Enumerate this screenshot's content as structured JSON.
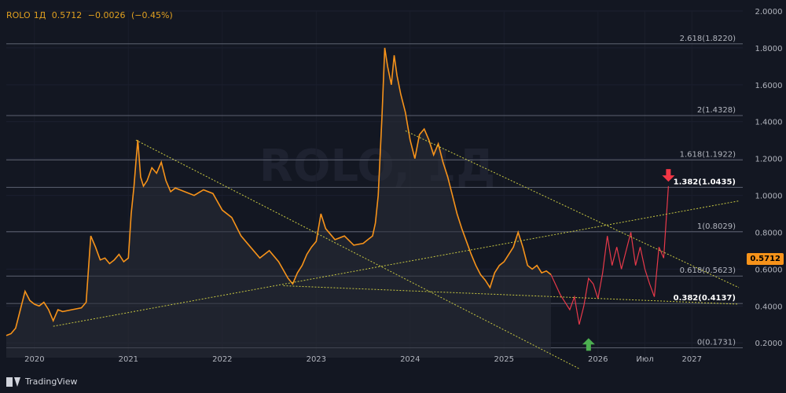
{
  "header": {
    "symbol": "ROLO",
    "timeframe": "1Д",
    "price": "0.5712",
    "change": "−0.0026",
    "change_pct": "(−0.45%)"
  },
  "brand": "TradingView",
  "price_tag": "0.5712",
  "watermark": "ROLO, 1Д",
  "colors": {
    "background": "#131722",
    "price_line": "#f7931a",
    "forecast": "#e8394a",
    "trendline": "#c8c842",
    "fib_line": "#5d6270",
    "up_arrow": "#4caf50",
    "down_arrow": "#f23645"
  },
  "chart_data": {
    "type": "line",
    "y_axis": {
      "ylim": [
        0.12,
        2.0
      ],
      "ticks": [
        "2.0000",
        "1.8000",
        "1.6000",
        "1.4000",
        "1.2000",
        "1.0000",
        "0.8000",
        "0.6000",
        "0.4000",
        "0.2000"
      ]
    },
    "x_axis": {
      "labels": [
        "2020",
        "2021",
        "2022",
        "2023",
        "2024",
        "2025",
        "2026",
        "Июл",
        "2027"
      ],
      "positions": [
        2020.0,
        2021.0,
        2022.0,
        2023.0,
        2024.0,
        2025.0,
        2026.0,
        2026.5,
        2027.0
      ]
    },
    "fib_levels": [
      {
        "label": "2.618(1.8220)",
        "value": 1.822,
        "bold": false
      },
      {
        "label": "2(1.4328)",
        "value": 1.4328,
        "bold": false
      },
      {
        "label": "1.618(1.1922)",
        "value": 1.1922,
        "bold": false
      },
      {
        "label": "1.382(1.0435)",
        "value": 1.0435,
        "bold": true
      },
      {
        "label": "1(0.8029)",
        "value": 0.8029,
        "bold": false
      },
      {
        "label": "0.618(0.5623)",
        "value": 0.5623,
        "bold": false
      },
      {
        "label": "0.382(0.4137)",
        "value": 0.4137,
        "bold": true
      },
      {
        "label": "0(0.1731)",
        "value": 0.1731,
        "bold": false
      }
    ],
    "series": [
      {
        "x": [
          2019.7,
          2019.75,
          2019.8,
          2019.85,
          2019.9,
          2019.95,
          2020.0,
          2020.05,
          2020.1,
          2020.15,
          2020.2,
          2020.25,
          2020.3,
          2020.4,
          2020.5,
          2020.55,
          2020.6,
          2020.65,
          2020.7,
          2020.75,
          2020.8,
          2020.85,
          2020.9,
          2020.95,
          2021.0,
          2021.03,
          2021.06,
          2021.08,
          2021.1,
          2021.13,
          2021.16,
          2021.2,
          2021.25,
          2021.3,
          2021.35,
          2021.4,
          2021.45,
          2021.5,
          2021.6,
          2021.7,
          2021.8,
          2021.9,
          2022.0,
          2022.1,
          2022.2,
          2022.3,
          2022.4,
          2022.5,
          2022.6,
          2022.7,
          2022.75,
          2022.8,
          2022.85,
          2022.9,
          2022.95,
          2023.0,
          2023.05,
          2023.1,
          2023.2,
          2023.3,
          2023.4,
          2023.5,
          2023.55,
          2023.6,
          2023.63,
          2023.66,
          2023.7,
          2023.73,
          2023.76,
          2023.8,
          2023.83,
          2023.86,
          2023.9,
          2023.95,
          2024.0,
          2024.05,
          2024.1,
          2024.15,
          2024.2,
          2024.25,
          2024.3,
          2024.35,
          2024.4,
          2024.45,
          2024.5,
          2024.55,
          2024.6,
          2024.65,
          2024.7,
          2024.75,
          2024.8,
          2024.85,
          2024.9,
          2024.95,
          2025.0,
          2025.05,
          2025.1,
          2025.15,
          2025.2,
          2025.25,
          2025.3,
          2025.35,
          2025.4,
          2025.45,
          2025.5
        ],
        "y": [
          0.24,
          0.25,
          0.28,
          0.38,
          0.48,
          0.43,
          0.41,
          0.4,
          0.42,
          0.38,
          0.32,
          0.38,
          0.37,
          0.38,
          0.39,
          0.42,
          0.78,
          0.72,
          0.65,
          0.66,
          0.63,
          0.65,
          0.68,
          0.64,
          0.66,
          0.9,
          1.05,
          1.18,
          1.3,
          1.1,
          1.05,
          1.08,
          1.15,
          1.12,
          1.18,
          1.08,
          1.02,
          1.04,
          1.02,
          1.0,
          1.03,
          1.01,
          0.92,
          0.88,
          0.78,
          0.72,
          0.66,
          0.7,
          0.64,
          0.55,
          0.52,
          0.58,
          0.62,
          0.68,
          0.72,
          0.75,
          0.9,
          0.82,
          0.76,
          0.78,
          0.73,
          0.74,
          0.76,
          0.78,
          0.85,
          1.0,
          1.42,
          1.8,
          1.7,
          1.6,
          1.76,
          1.65,
          1.55,
          1.45,
          1.3,
          1.2,
          1.33,
          1.36,
          1.3,
          1.22,
          1.28,
          1.18,
          1.1,
          1.0,
          0.9,
          0.82,
          0.75,
          0.68,
          0.62,
          0.57,
          0.54,
          0.5,
          0.58,
          0.62,
          0.64,
          0.68,
          0.72,
          0.8,
          0.72,
          0.62,
          0.6,
          0.62,
          0.58,
          0.59,
          0.57
        ]
      },
      {
        "x": [
          2025.5,
          2025.6,
          2025.7,
          2025.75,
          2025.8,
          2025.85,
          2025.9,
          2025.95,
          2026.0,
          2026.05,
          2026.1,
          2026.15,
          2026.2,
          2026.25,
          2026.3,
          2026.35,
          2026.4,
          2026.45,
          2026.5,
          2026.55,
          2026.6,
          2026.65,
          2026.7,
          2026.75
        ],
        "y": [
          0.57,
          0.46,
          0.38,
          0.45,
          0.3,
          0.4,
          0.55,
          0.52,
          0.44,
          0.58,
          0.78,
          0.62,
          0.72,
          0.6,
          0.7,
          0.8,
          0.62,
          0.72,
          0.6,
          0.52,
          0.45,
          0.72,
          0.66,
          1.05
        ]
      }
    ],
    "trendlines": [
      {
        "x1": 2021.08,
        "y1": 1.3,
        "x2": 2025.8,
        "y2": 0.06
      },
      {
        "x1": 2023.95,
        "y1": 1.35,
        "x2": 2027.5,
        "y2": 0.5
      },
      {
        "x1": 2020.2,
        "y1": 0.29,
        "x2": 2027.5,
        "y2": 0.97
      },
      {
        "x1": 2022.65,
        "y1": 0.51,
        "x2": 2027.5,
        "y2": 0.41
      }
    ],
    "arrows": [
      {
        "dir": "up",
        "x": 2025.9,
        "y": 0.2
      },
      {
        "dir": "down",
        "x": 2026.75,
        "y": 1.1
      }
    ],
    "grid": true,
    "legend": "none"
  }
}
